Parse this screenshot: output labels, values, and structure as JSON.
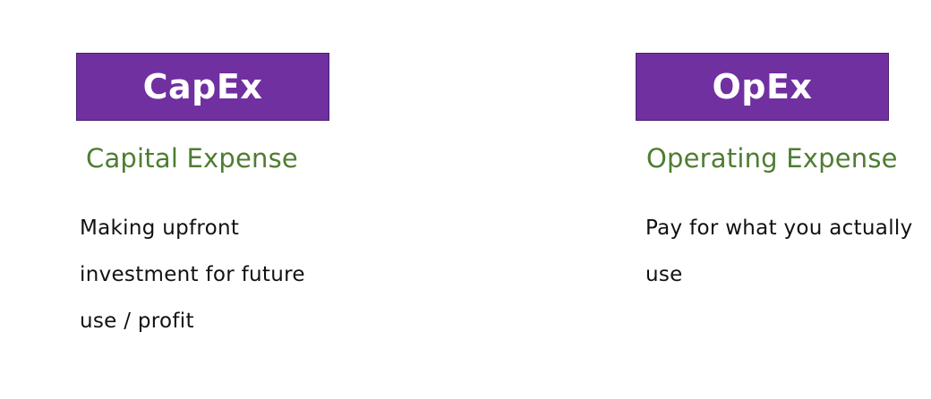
{
  "capex": {
    "title": "CapEx",
    "subtitle": "Capital Expense",
    "description": "Making upfront investment for future use / profit"
  },
  "opex": {
    "title": "OpEx",
    "subtitle": "Operating Expense",
    "description": "Pay for what you actually use"
  },
  "colors": {
    "title_box_bg": "#7030a0",
    "title_text": "#ffffff",
    "subtitle_text": "#4e7d32",
    "body_text": "#111111",
    "background": "#ffffff"
  }
}
